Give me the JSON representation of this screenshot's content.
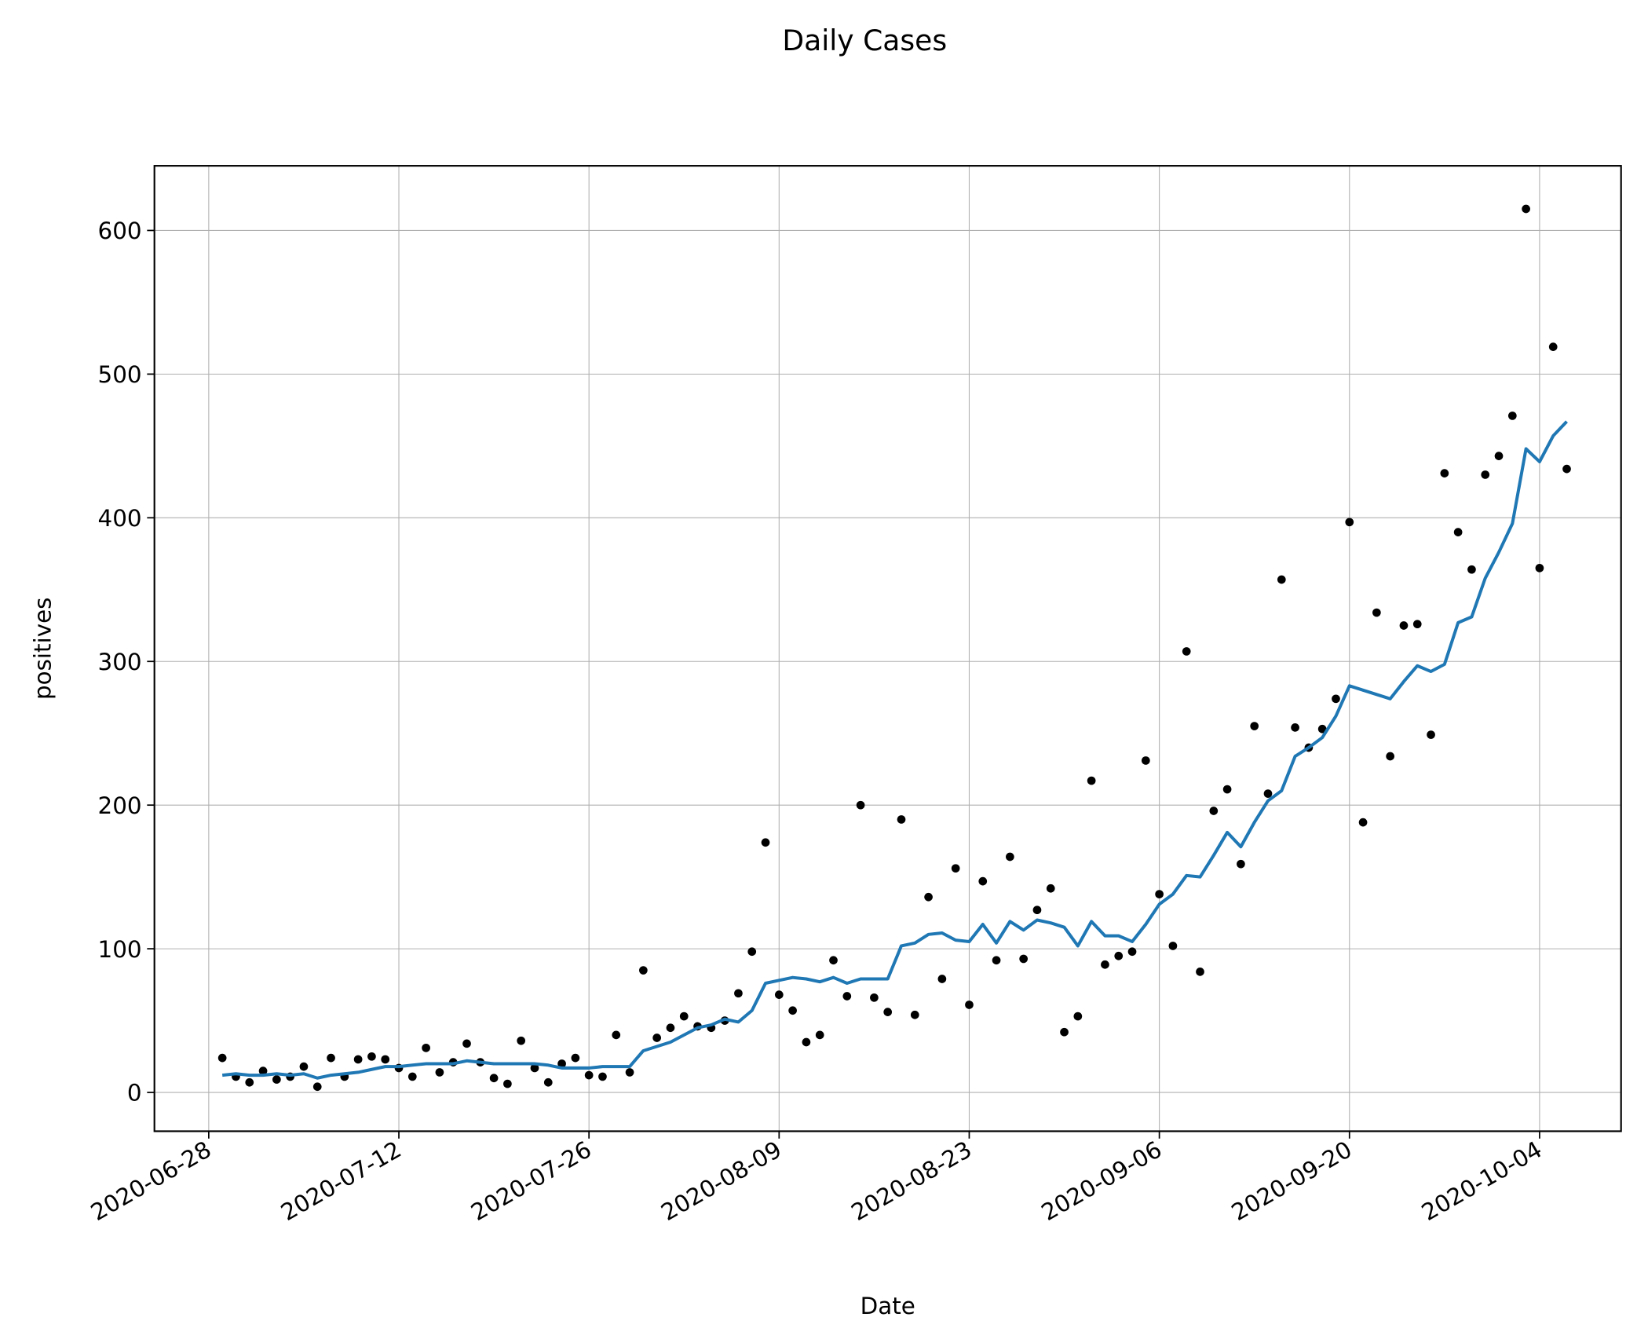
{
  "chart_data": {
    "type": "line",
    "title": "Daily Cases",
    "xlabel": "Date",
    "ylabel": "positives",
    "x": [
      "2020-06-29",
      "2020-06-30",
      "2020-07-01",
      "2020-07-02",
      "2020-07-03",
      "2020-07-04",
      "2020-07-05",
      "2020-07-06",
      "2020-07-07",
      "2020-07-08",
      "2020-07-09",
      "2020-07-10",
      "2020-07-11",
      "2020-07-12",
      "2020-07-13",
      "2020-07-14",
      "2020-07-15",
      "2020-07-16",
      "2020-07-17",
      "2020-07-18",
      "2020-07-19",
      "2020-07-20",
      "2020-07-21",
      "2020-07-22",
      "2020-07-23",
      "2020-07-24",
      "2020-07-25",
      "2020-07-26",
      "2020-07-27",
      "2020-07-28",
      "2020-07-29",
      "2020-07-30",
      "2020-07-31",
      "2020-08-01",
      "2020-08-02",
      "2020-08-03",
      "2020-08-04",
      "2020-08-05",
      "2020-08-06",
      "2020-08-07",
      "2020-08-08",
      "2020-08-09",
      "2020-08-10",
      "2020-08-11",
      "2020-08-12",
      "2020-08-13",
      "2020-08-14",
      "2020-08-15",
      "2020-08-16",
      "2020-08-17",
      "2020-08-18",
      "2020-08-19",
      "2020-08-20",
      "2020-08-21",
      "2020-08-22",
      "2020-08-23",
      "2020-08-24",
      "2020-08-25",
      "2020-08-26",
      "2020-08-27",
      "2020-08-28",
      "2020-08-29",
      "2020-08-30",
      "2020-08-31",
      "2020-09-01",
      "2020-09-02",
      "2020-09-03",
      "2020-09-04",
      "2020-09-05",
      "2020-09-06",
      "2020-09-07",
      "2020-09-08",
      "2020-09-09",
      "2020-09-10",
      "2020-09-11",
      "2020-09-12",
      "2020-09-13",
      "2020-09-14",
      "2020-09-15",
      "2020-09-16",
      "2020-09-17",
      "2020-09-18",
      "2020-09-19",
      "2020-09-20",
      "2020-09-21",
      "2020-09-22",
      "2020-09-23",
      "2020-09-24",
      "2020-09-25",
      "2020-09-26",
      "2020-09-27",
      "2020-09-28",
      "2020-09-29",
      "2020-09-30",
      "2020-10-01",
      "2020-10-02",
      "2020-10-03",
      "2020-10-04",
      "2020-10-05",
      "2020-10-06"
    ],
    "series": [
      {
        "mode": "markers",
        "color": "#000000",
        "values": [
          24,
          11,
          7,
          15,
          9,
          11,
          18,
          4,
          24,
          11,
          23,
          25,
          23,
          17,
          11,
          31,
          14,
          21,
          34,
          21,
          10,
          6,
          36,
          17,
          7,
          20,
          24,
          12,
          11,
          40,
          14,
          85,
          38,
          45,
          53,
          46,
          45,
          50,
          69,
          98,
          174,
          68,
          57,
          35,
          40,
          92,
          67,
          200,
          66,
          56,
          190,
          54,
          136,
          79,
          156,
          61,
          147,
          92,
          164,
          93,
          127,
          142,
          42,
          53,
          217,
          89,
          95,
          98,
          231,
          138,
          102,
          307,
          84,
          196,
          211,
          159,
          255,
          208,
          357,
          254,
          240,
          253,
          274,
          397,
          188,
          334,
          234,
          325,
          326,
          249,
          431,
          390,
          364,
          430,
          443,
          471,
          615,
          365,
          519,
          434
        ]
      },
      {
        "mode": "line",
        "color": "#1f77b4",
        "values": [
          12,
          13,
          12,
          12,
          13,
          12,
          13,
          10,
          12,
          13,
          14,
          16,
          18,
          18,
          19,
          20,
          20,
          20,
          22,
          21,
          20,
          20,
          20,
          20,
          19,
          17,
          17,
          17,
          18,
          18,
          18,
          29,
          32,
          35,
          40,
          45,
          47,
          51,
          49,
          57,
          76,
          78,
          80,
          79,
          77,
          80,
          76,
          79,
          79,
          79,
          102,
          104,
          110,
          111,
          106,
          105,
          117,
          104,
          119,
          113,
          120,
          118,
          115,
          102,
          119,
          109,
          109,
          105,
          117,
          131,
          138,
          151,
          150,
          165,
          181,
          171,
          188,
          203,
          210,
          234,
          240,
          247,
          262,
          283,
          280,
          277,
          274,
          286,
          297,
          293,
          298,
          327,
          331,
          358,
          376,
          396,
          448,
          439,
          457,
          467
        ]
      }
    ],
    "xlim": [
      "2020-06-24",
      "2020-10-10"
    ],
    "xticks": [
      "2020-06-28",
      "2020-07-12",
      "2020-07-26",
      "2020-08-09",
      "2020-08-23",
      "2020-09-06",
      "2020-09-20",
      "2020-10-04"
    ],
    "ylim": [
      -27,
      645
    ],
    "yticks": [
      0,
      100,
      200,
      300,
      400,
      500,
      600
    ],
    "grid": true
  }
}
